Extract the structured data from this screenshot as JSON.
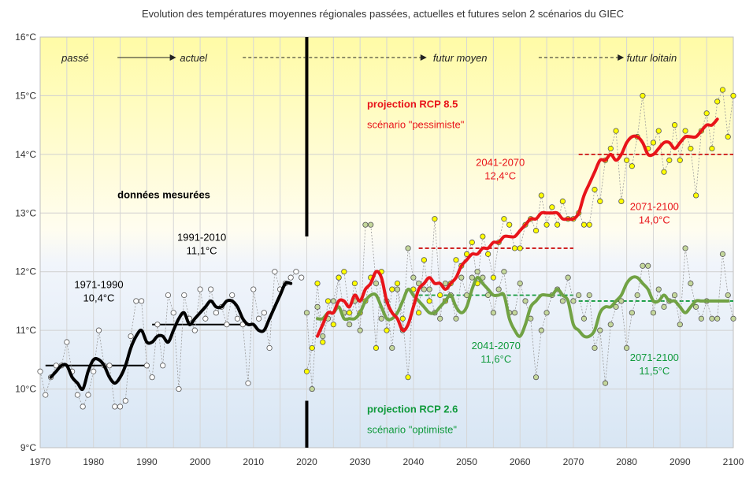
{
  "chart_data": {
    "type": "line",
    "title": "Evolution des températures moyennes régionales passées, actuelles et futures selon 2 scénarios du GIEC",
    "xlabel": "",
    "ylabel": "",
    "xlim": [
      1970,
      2100
    ],
    "ylim": [
      9,
      16
    ],
    "x_ticks": [
      1970,
      1980,
      1990,
      2000,
      2010,
      2020,
      2030,
      2040,
      2050,
      2060,
      2070,
      2080,
      2090,
      2100
    ],
    "y_ticks": [
      9,
      10,
      11,
      12,
      13,
      14,
      15,
      16
    ],
    "y_tick_labels": [
      "9°C",
      "10°C",
      "11°C",
      "12°C",
      "13°C",
      "14°C",
      "15°C",
      "16°C"
    ],
    "grid": true,
    "divider_year": 2020,
    "colors": {
      "observed": "#000000",
      "rcp85": "#e8141a",
      "rcp26": "#71a244",
      "yellow_point": "#ffff00",
      "green_point": "#c4d79b",
      "green_text": "#109a3c",
      "red_text": "#e8141a"
    },
    "era_labels": {
      "past": "passé",
      "present": "actuel",
      "mid_future": "futur moyen",
      "far_future": "futur loitain"
    },
    "labels": {
      "observed": "données mesurées",
      "rcp85_title": "projection RCP 8.5",
      "rcp85_subtitle": "scénario \"pessimiste\"",
      "rcp26_title": "projection RCP 2.6",
      "rcp26_subtitle": "scénario \"optimiste\""
    },
    "period_means": [
      {
        "period": "1971-1990",
        "value_label": "10,4°C",
        "value": 10.4,
        "x_start": 1971,
        "x_end": 1990,
        "color": "#000000",
        "dashed": false
      },
      {
        "period": "1991-2010",
        "value_label": "11,1°C",
        "value": 11.1,
        "x_start": 1991,
        "x_end": 2010,
        "color": "#000000",
        "dashed": false
      },
      {
        "period": "2041-2070",
        "value_label": "12,4°C",
        "value": 12.4,
        "x_start": 2041,
        "x_end": 2070,
        "color": "#cc1010",
        "dashed": true
      },
      {
        "period": "2071-2100",
        "value_label": "14,0°C",
        "value": 14.0,
        "x_start": 2071,
        "x_end": 2100,
        "color": "#cc1010",
        "dashed": true
      },
      {
        "period": "2041-2070",
        "value_label": "11,6°C",
        "value": 11.6,
        "x_start": 2041,
        "x_end": 2070,
        "color": "#109a3c",
        "dashed": true
      },
      {
        "period": "2071-2100",
        "value_label": "11,5°C",
        "value": 11.5,
        "x_start": 2071,
        "x_end": 2100,
        "color": "#109a3c",
        "dashed": true
      }
    ],
    "series": [
      {
        "name": "données mesurées",
        "x": [
          1970,
          1971,
          1972,
          1973,
          1974,
          1975,
          1976,
          1977,
          1978,
          1979,
          1980,
          1981,
          1982,
          1983,
          1984,
          1985,
          1986,
          1987,
          1988,
          1989,
          1990,
          1991,
          1992,
          1993,
          1994,
          1995,
          1996,
          1997,
          1998,
          1999,
          2000,
          2001,
          2002,
          2003,
          2004,
          2005,
          2006,
          2007,
          2008,
          2009,
          2010,
          2011,
          2012,
          2013,
          2014,
          2015,
          2016,
          2017,
          2018,
          2019
        ],
        "values": [
          10.3,
          9.9,
          10.2,
          10.4,
          10.4,
          10.8,
          10.3,
          9.9,
          9.7,
          9.9,
          10.3,
          11.0,
          10.4,
          10.4,
          9.7,
          9.7,
          9.8,
          10.9,
          11.5,
          11.5,
          10.4,
          10.2,
          11.1,
          10.4,
          11.6,
          11.3,
          10.0,
          11.6,
          11.2,
          11.0,
          11.7,
          11.2,
          11.7,
          11.3,
          11.4,
          11.1,
          11.6,
          11.2,
          11.1,
          10.1,
          11.7,
          11.2,
          11.3,
          10.7,
          12.0,
          11.7,
          11.8,
          11.9,
          12.0,
          11.9
        ],
        "smoothed": [
          null,
          null,
          10.2,
          10.3,
          10.4,
          10.4,
          10.2,
          10.1,
          10.0,
          10.3,
          10.5,
          10.5,
          10.4,
          10.2,
          10.1,
          10.2,
          10.4,
          10.7,
          10.9,
          11.0,
          10.8,
          10.8,
          10.9,
          10.9,
          10.8,
          11.0,
          11.2,
          11.3,
          11.1,
          11.2,
          11.3,
          11.4,
          11.5,
          11.4,
          11.4,
          11.5,
          11.5,
          11.4,
          11.2,
          11.1,
          11.1,
          11.0,
          11.0,
          11.2,
          11.4,
          11.6,
          11.8,
          11.8,
          null,
          null
        ]
      },
      {
        "name": "projection RCP 8.5",
        "x": [
          2020,
          2021,
          2022,
          2023,
          2024,
          2025,
          2026,
          2027,
          2028,
          2029,
          2030,
          2031,
          2032,
          2033,
          2034,
          2035,
          2036,
          2037,
          2038,
          2039,
          2040,
          2041,
          2042,
          2043,
          2044,
          2045,
          2046,
          2047,
          2048,
          2049,
          2050,
          2051,
          2052,
          2053,
          2054,
          2055,
          2056,
          2057,
          2058,
          2059,
          2060,
          2061,
          2062,
          2063,
          2064,
          2065,
          2066,
          2067,
          2068,
          2069,
          2070,
          2071,
          2072,
          2073,
          2074,
          2075,
          2076,
          2077,
          2078,
          2079,
          2080,
          2081,
          2082,
          2083,
          2084,
          2085,
          2086,
          2087,
          2088,
          2089,
          2090,
          2091,
          2092,
          2093,
          2094,
          2095,
          2096,
          2097,
          2098,
          2099,
          2100
        ],
        "values": [
          10.3,
          10.7,
          11.8,
          10.8,
          11.5,
          11.1,
          11.9,
          12.0,
          11.3,
          11.8,
          11.3,
          11.5,
          11.9,
          10.7,
          12.0,
          11.0,
          11.7,
          11.8,
          11.2,
          10.2,
          11.7,
          11.3,
          12.2,
          11.5,
          12.9,
          11.6,
          11.5,
          11.8,
          12.2,
          12.1,
          12.3,
          12.5,
          11.8,
          12.6,
          12.3,
          11.9,
          12.5,
          12.9,
          12.8,
          12.4,
          12.4,
          12.8,
          12.9,
          12.7,
          13.3,
          12.8,
          13.1,
          12.8,
          13.2,
          12.9,
          12.9,
          13.0,
          12.8,
          12.8,
          13.4,
          13.2,
          13.9,
          14.1,
          14.4,
          13.2,
          13.9,
          13.8,
          14.3,
          15.0,
          14.1,
          14.2,
          14.4,
          13.7,
          13.9,
          14.5,
          13.9,
          14.4,
          14.1,
          13.3,
          14.4,
          14.7,
          14.1,
          14.9,
          15.1,
          14.3,
          15.0
        ],
        "smoothed": [
          null,
          null,
          10.9,
          11.1,
          11.3,
          11.3,
          11.5,
          11.5,
          11.4,
          11.6,
          11.5,
          11.7,
          11.8,
          12.0,
          11.9,
          11.5,
          11.3,
          11.2,
          11.0,
          11.1,
          11.4,
          11.7,
          11.8,
          11.9,
          11.8,
          11.8,
          11.7,
          11.8,
          11.9,
          12.1,
          12.2,
          12.3,
          12.3,
          12.4,
          12.4,
          12.5,
          12.5,
          12.6,
          12.6,
          12.6,
          12.7,
          12.8,
          12.9,
          12.9,
          13.0,
          13.0,
          13.0,
          13.0,
          12.9,
          12.9,
          12.9,
          13.0,
          13.3,
          13.5,
          13.7,
          13.9,
          13.9,
          14.0,
          13.9,
          14.0,
          14.2,
          14.3,
          14.3,
          14.2,
          14.0,
          14.0,
          14.1,
          14.2,
          14.2,
          14.1,
          14.2,
          14.3,
          14.3,
          14.3,
          14.4,
          14.5,
          14.5,
          14.6,
          null,
          null,
          null
        ]
      },
      {
        "name": "projection RCP 2.6",
        "x": [
          2020,
          2021,
          2022,
          2023,
          2024,
          2025,
          2026,
          2027,
          2028,
          2029,
          2030,
          2031,
          2032,
          2033,
          2034,
          2035,
          2036,
          2037,
          2038,
          2039,
          2040,
          2041,
          2042,
          2043,
          2044,
          2045,
          2046,
          2047,
          2048,
          2049,
          2050,
          2051,
          2052,
          2053,
          2054,
          2055,
          2056,
          2057,
          2058,
          2059,
          2060,
          2061,
          2062,
          2063,
          2064,
          2065,
          2066,
          2067,
          2068,
          2069,
          2070,
          2071,
          2072,
          2073,
          2074,
          2075,
          2076,
          2077,
          2078,
          2079,
          2080,
          2081,
          2082,
          2083,
          2084,
          2085,
          2086,
          2087,
          2088,
          2089,
          2090,
          2091,
          2092,
          2093,
          2094,
          2095,
          2096,
          2097,
          2098,
          2099,
          2100
        ],
        "values": [
          11.3,
          10.0,
          11.4,
          10.9,
          11.2,
          11.5,
          11.9,
          11.3,
          11.1,
          11.5,
          11.0,
          12.8,
          12.8,
          11.8,
          11.2,
          11.5,
          10.7,
          11.7,
          11.0,
          12.4,
          11.9,
          11.8,
          11.7,
          11.7,
          11.3,
          11.2,
          11.8,
          11.6,
          11.2,
          11.9,
          11.6,
          11.9,
          12.0,
          11.9,
          11.6,
          11.3,
          11.7,
          12.0,
          11.3,
          11.3,
          11.8,
          11.5,
          11.2,
          10.2,
          11.0,
          11.3,
          11.6,
          11.7,
          11.5,
          11.9,
          11.5,
          11.6,
          11.2,
          11.6,
          10.7,
          11.0,
          10.1,
          11.1,
          11.4,
          11.5,
          10.7,
          11.3,
          11.6,
          12.1,
          12.1,
          11.3,
          11.7,
          11.4,
          11.5,
          11.6,
          11.1,
          12.4,
          11.8,
          11.4,
          11.2,
          11.5,
          11.2,
          11.2,
          12.3,
          11.6,
          11.2
        ],
        "smoothed": [
          null,
          null,
          11.2,
          11.2,
          11.3,
          11.3,
          11.4,
          11.2,
          11.2,
          11.2,
          11.3,
          11.5,
          11.6,
          11.6,
          11.4,
          11.2,
          11.2,
          11.3,
          11.5,
          11.7,
          11.6,
          11.5,
          11.4,
          11.3,
          11.3,
          11.4,
          11.5,
          11.6,
          11.4,
          11.3,
          11.4,
          11.7,
          11.9,
          11.8,
          11.7,
          11.6,
          11.6,
          11.6,
          11.2,
          11.0,
          10.9,
          11.1,
          11.4,
          11.5,
          11.6,
          11.6,
          11.6,
          11.7,
          11.6,
          11.5,
          11.1,
          11.0,
          10.9,
          10.9,
          11.0,
          11.3,
          11.4,
          11.4,
          11.5,
          11.6,
          11.8,
          11.9,
          11.9,
          11.8,
          11.7,
          11.5,
          11.5,
          11.6,
          11.5,
          11.5,
          11.4,
          11.3,
          11.4,
          11.5,
          11.5,
          11.5,
          11.5,
          11.5,
          11.5,
          11.5,
          null
        ]
      }
    ]
  }
}
